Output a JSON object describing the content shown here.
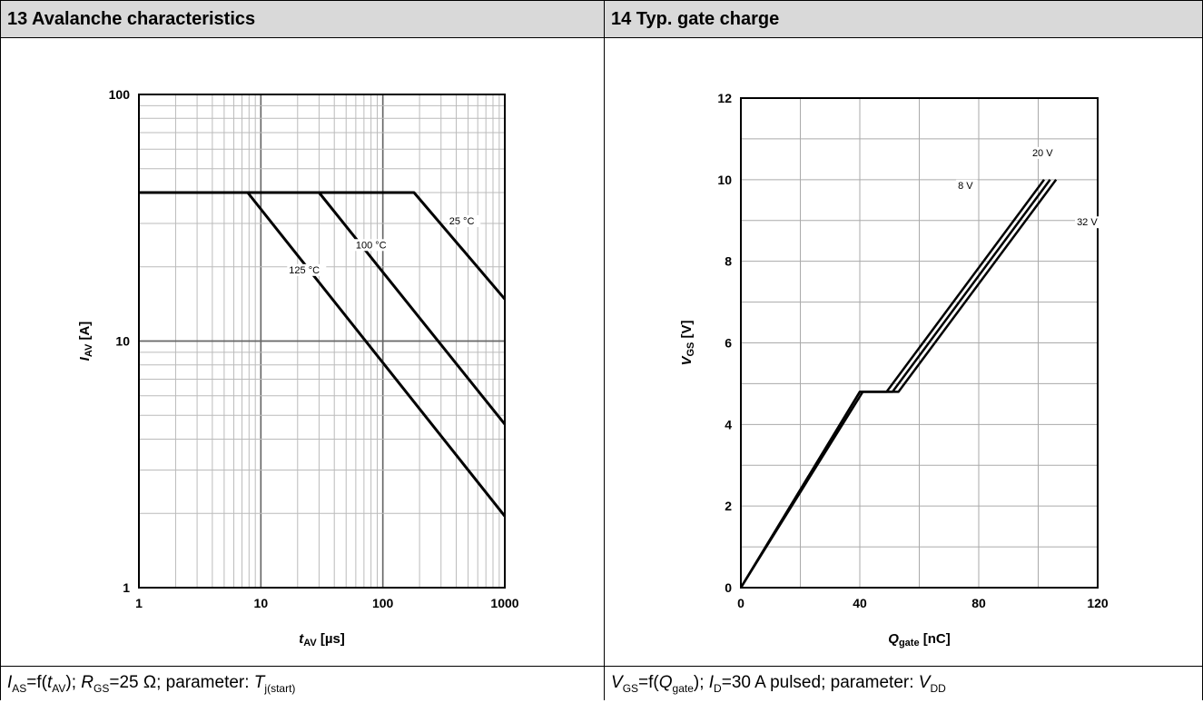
{
  "panels": [
    {
      "title": "13 Avalanche characteristics",
      "caption": {
        "p1": "I",
        "p1sub": "AS",
        "p2": "=f(",
        "p3": "t",
        "p3sub": "AV",
        "p4": "); ",
        "p5": "R",
        "p5sub": "GS",
        "p6": "=25 Ω; parameter: ",
        "p7": "T",
        "p7sub": "j(start)"
      }
    },
    {
      "title": "14 Typ. gate charge",
      "caption": {
        "p1": "V",
        "p1sub": "GS",
        "p2": "=f(",
        "p3": "Q",
        "p3sub": "gate",
        "p4": "); ",
        "p5": "I",
        "p5sub": "D",
        "p6": "=30 A pulsed; parameter: ",
        "p7": "V",
        "p7sub": "DD"
      }
    }
  ],
  "chart_data": [
    {
      "type": "line",
      "xscale": "log",
      "yscale": "log",
      "xlim": [
        1,
        1000
      ],
      "ylim": [
        1,
        100
      ],
      "xticks": [
        "1",
        "10",
        "100",
        "1000"
      ],
      "yticks": [
        "1",
        "10",
        "100"
      ],
      "xlabel": {
        "main": "t",
        "sub": "AV",
        "unit": " [µs]"
      },
      "ylabel": {
        "main": "I",
        "sub": "AV",
        "unit": " [A]"
      },
      "grid": true,
      "series": [
        {
          "name": "25 °C",
          "label": "25 °C",
          "x": [
            1,
            180,
            1000
          ],
          "y": [
            40,
            40,
            14.8
          ]
        },
        {
          "name": "100 °C",
          "label": "100 °C",
          "x": [
            1,
            30,
            1000
          ],
          "y": [
            40,
            40,
            4.6
          ]
        },
        {
          "name": "125 °C",
          "label": "125 °C",
          "x": [
            1,
            7.8,
            1000
          ],
          "y": [
            40,
            40,
            1.95
          ]
        }
      ],
      "labels": [
        {
          "text": "25 °C",
          "x": 350,
          "y": 30
        },
        {
          "text": "100 °C",
          "x": 60,
          "y": 24
        },
        {
          "text": "125 °C",
          "x": 17,
          "y": 19
        }
      ]
    },
    {
      "type": "line",
      "xscale": "linear",
      "yscale": "linear",
      "xlim": [
        0,
        120
      ],
      "ylim": [
        0,
        12
      ],
      "xticks": [
        "0",
        "40",
        "80",
        "120"
      ],
      "yticks": [
        "0",
        "2",
        "4",
        "6",
        "8",
        "10",
        "12"
      ],
      "xlabel": {
        "main": "Q",
        "sub": "gate",
        "unit": " [nC]"
      },
      "ylabel": {
        "main": "V",
        "sub": "GS",
        "unit": " [V]"
      },
      "grid": true,
      "series": [
        {
          "name": "8 V",
          "label": "8 V",
          "x": [
            0,
            40,
            49,
            102
          ],
          "y": [
            0,
            4.8,
            4.8,
            10
          ]
        },
        {
          "name": "20 V",
          "label": "20 V",
          "x": [
            0,
            40,
            51,
            104
          ],
          "y": [
            0,
            4.8,
            4.8,
            10
          ]
        },
        {
          "name": "32 V",
          "label": "32 V",
          "x": [
            0,
            41,
            53,
            106
          ],
          "y": [
            0,
            4.8,
            4.8,
            10
          ]
        }
      ],
      "labels": [
        {
          "text": "8 V",
          "x": 73,
          "y": 9.8
        },
        {
          "text": "20 V",
          "x": 98,
          "y": 10.6
        },
        {
          "text": "32 V",
          "x": 113,
          "y": 8.9
        }
      ]
    }
  ]
}
